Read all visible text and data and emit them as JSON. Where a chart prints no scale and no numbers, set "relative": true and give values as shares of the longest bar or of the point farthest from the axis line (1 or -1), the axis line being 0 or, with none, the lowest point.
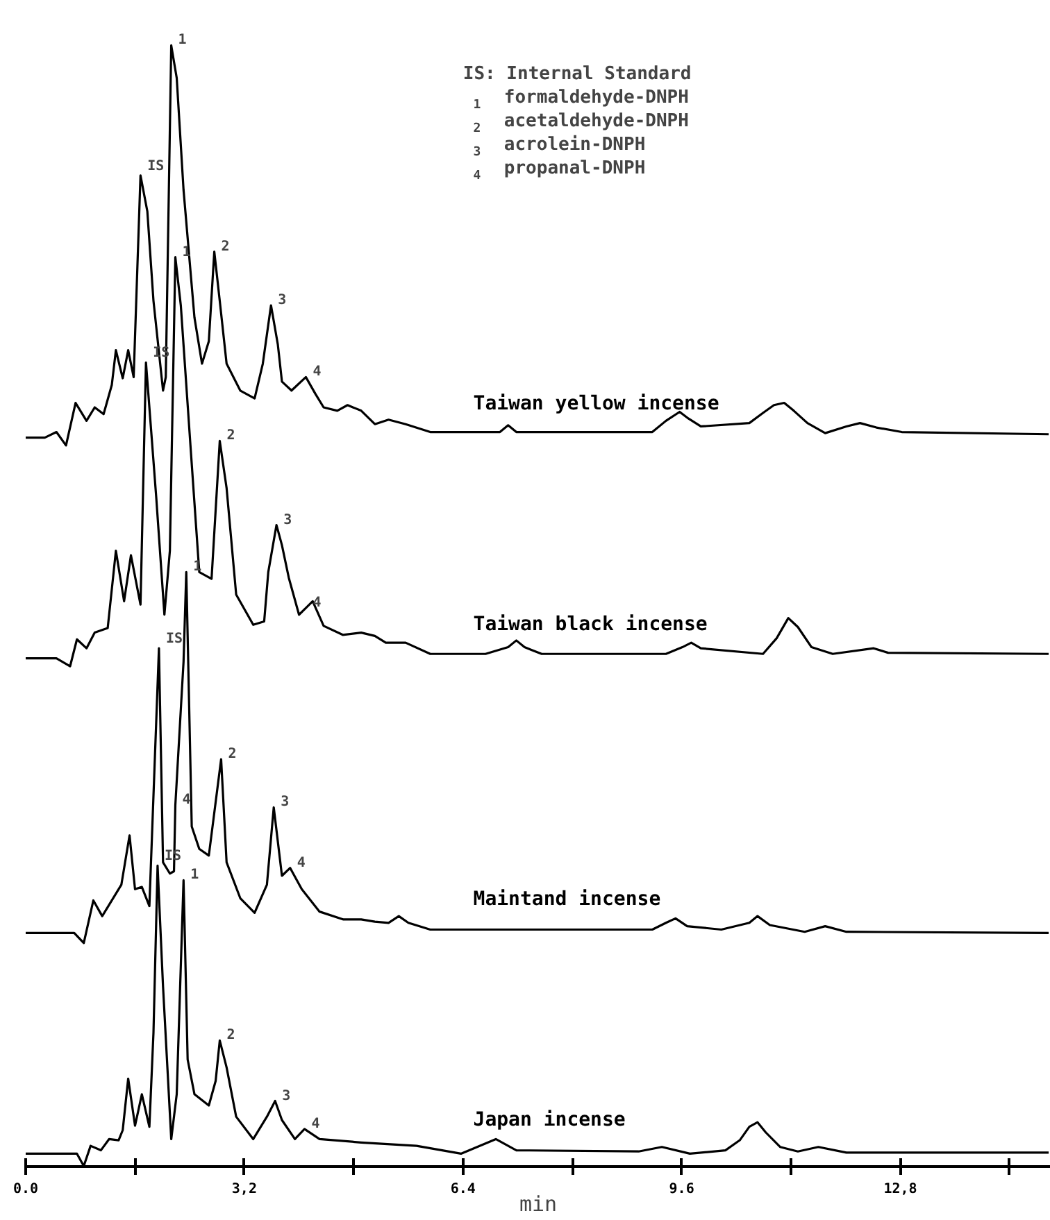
{
  "chart_data": {
    "type": "line",
    "relative": true,
    "xlabel": "min",
    "xlim": [
      0,
      15
    ],
    "xticks": [
      {
        "value": 0,
        "label": "0.0"
      },
      {
        "value": 1.6,
        "label": null
      },
      {
        "value": 3.2,
        "label": "3,2"
      },
      {
        "value": 4.8,
        "label": null
      },
      {
        "value": 6.4,
        "label": "6.4"
      },
      {
        "value": 8.0,
        "label": null
      },
      {
        "value": 9.6,
        "label": "9.6"
      },
      {
        "value": 11.2,
        "label": null
      },
      {
        "value": 12.8,
        "label": "12,8"
      },
      {
        "value": 14.4,
        "label": null
      }
    ],
    "tick_labels": "x",
    "grid": false,
    "legend": false,
    "marker": "none",
    "line_style": "solid",
    "series": [
      {
        "name": "Taiwan yellow incense",
        "color": "#000000",
        "x": [
          0,
          0.28,
          0.45,
          0.59,
          0.73,
          0.89,
          1.01,
          1.14,
          1.26,
          1.32,
          1.42,
          1.5,
          1.58,
          1.68,
          1.78,
          1.87,
          2.01,
          2.05,
          2.13,
          2.21,
          2.31,
          2.47,
          2.58,
          2.68,
          2.76,
          2.84,
          2.94,
          3.14,
          3.35,
          3.47,
          3.59,
          3.69,
          3.75,
          3.89,
          4.1,
          4.24,
          4.36,
          4.56,
          4.71,
          4.91,
          5.11,
          5.31,
          5.56,
          5.92,
          6.94,
          7.06,
          7.18,
          9.17,
          9.37,
          9.57,
          9.7,
          9.88,
          10.59,
          10.79,
          10.95,
          11.1,
          11.24,
          11.44,
          11.7,
          12.01,
          12.21,
          12.45,
          12.82,
          14.97
        ],
        "values": [
          0.65,
          0.65,
          0.655,
          0.643,
          0.681,
          0.665,
          0.677,
          0.671,
          0.697,
          0.728,
          0.703,
          0.728,
          0.704,
          0.884,
          0.852,
          0.772,
          0.692,
          0.704,
          1.0,
          0.971,
          0.871,
          0.757,
          0.716,
          0.736,
          0.816,
          0.772,
          0.716,
          0.692,
          0.685,
          0.716,
          0.768,
          0.733,
          0.7,
          0.692,
          0.704,
          0.689,
          0.677,
          0.674,
          0.679,
          0.674,
          0.662,
          0.666,
          0.662,
          0.655,
          0.655,
          0.661,
          0.655,
          0.655,
          0.665,
          0.673,
          0.667,
          0.66,
          0.663,
          0.672,
          0.679,
          0.681,
          0.674,
          0.663,
          0.654,
          0.66,
          0.663,
          0.659,
          0.655,
          0.653
        ]
      },
      {
        "name": "Taiwan black incense",
        "color": "#000000",
        "x": [
          0,
          0.45,
          0.65,
          0.75,
          0.89,
          1.01,
          1.2,
          1.32,
          1.44,
          1.54,
          1.68,
          1.76,
          1.91,
          2.03,
          2.11,
          2.19,
          2.27,
          2.41,
          2.54,
          2.72,
          2.84,
          2.94,
          3.08,
          3.33,
          3.49,
          3.55,
          3.67,
          3.75,
          3.85,
          4.0,
          4.1,
          4.2,
          4.36,
          4.64,
          4.91,
          5.11,
          5.27,
          5.56,
          5.92,
          6.73,
          7.06,
          7.18,
          7.3,
          7.55,
          9.37,
          9.61,
          9.74,
          9.88,
          10.79,
          10.99,
          11.16,
          11.3,
          11.5,
          11.81,
          12.41,
          12.62,
          14.97
        ],
        "values": [
          0.453,
          0.453,
          0.446,
          0.47,
          0.462,
          0.476,
          0.48,
          0.549,
          0.504,
          0.545,
          0.501,
          0.717,
          0.597,
          0.492,
          0.549,
          0.811,
          0.768,
          0.644,
          0.53,
          0.524,
          0.647,
          0.605,
          0.51,
          0.483,
          0.486,
          0.53,
          0.572,
          0.554,
          0.525,
          0.492,
          0.498,
          0.504,
          0.482,
          0.474,
          0.476,
          0.473,
          0.467,
          0.467,
          0.457,
          0.457,
          0.463,
          0.469,
          0.463,
          0.457,
          0.457,
          0.463,
          0.467,
          0.462,
          0.457,
          0.471,
          0.489,
          0.481,
          0.463,
          0.457,
          0.462,
          0.458,
          0.457
        ]
      },
      {
        "name": "Maintand incense",
        "color": "#000000",
        "x": [
          0,
          0.71,
          0.85,
          0.99,
          1.12,
          1.4,
          1.52,
          1.6,
          1.7,
          1.81,
          1.95,
          2.01,
          2.11,
          2.17,
          2.19,
          2.31,
          2.35,
          2.43,
          2.54,
          2.68,
          2.86,
          2.94,
          3.14,
          3.35,
          3.53,
          3.63,
          3.75,
          3.87,
          4.04,
          4.3,
          4.65,
          4.91,
          5.11,
          5.31,
          5.46,
          5.6,
          5.92,
          9.17,
          9.37,
          9.51,
          9.68,
          10.18,
          10.59,
          10.71,
          10.89,
          11.4,
          11.7,
          12.01,
          14.97
        ],
        "values": [
          0.208,
          0.208,
          0.199,
          0.237,
          0.223,
          0.251,
          0.295,
          0.247,
          0.249,
          0.232,
          0.462,
          0.271,
          0.261,
          0.263,
          0.322,
          0.45,
          0.53,
          0.303,
          0.283,
          0.277,
          0.363,
          0.271,
          0.239,
          0.226,
          0.251,
          0.32,
          0.259,
          0.266,
          0.247,
          0.227,
          0.22,
          0.22,
          0.218,
          0.217,
          0.223,
          0.217,
          0.211,
          0.211,
          0.217,
          0.221,
          0.214,
          0.211,
          0.217,
          0.223,
          0.215,
          0.209,
          0.214,
          0.209,
          0.208
        ]
      },
      {
        "name": "Japan incense",
        "color": "#000000",
        "x": [
          0,
          0.75,
          0.85,
          0.95,
          1.1,
          1.22,
          1.36,
          1.42,
          1.5,
          1.6,
          1.7,
          1.81,
          1.87,
          1.93,
          2.01,
          2.13,
          2.21,
          2.31,
          2.37,
          2.47,
          2.68,
          2.78,
          2.84,
          2.94,
          3.08,
          3.33,
          3.53,
          3.65,
          3.75,
          3.94,
          4.08,
          4.3,
          4.91,
          5.72,
          6.37,
          6.88,
          7.18,
          8.97,
          9.31,
          9.72,
          10.24,
          10.45,
          10.59,
          10.71,
          10.83,
          11.04,
          11.3,
          11.6,
          12.01,
          14.97
        ],
        "values": [
          0.011,
          0.011,
          0.0,
          0.018,
          0.014,
          0.024,
          0.023,
          0.032,
          0.078,
          0.036,
          0.064,
          0.035,
          0.119,
          0.268,
          0.16,
          0.024,
          0.064,
          0.255,
          0.095,
          0.064,
          0.054,
          0.076,
          0.112,
          0.088,
          0.044,
          0.024,
          0.044,
          0.058,
          0.041,
          0.024,
          0.033,
          0.024,
          0.021,
          0.018,
          0.011,
          0.024,
          0.014,
          0.013,
          0.017,
          0.011,
          0.014,
          0.023,
          0.035,
          0.039,
          0.03,
          0.017,
          0.013,
          0.017,
          0.012,
          0.012
        ]
      }
    ],
    "annotations": [
      "IS: Internal Standard",
      "1 formaldehyde-DNPH",
      "2 acetaldehyde-DNPH",
      "3 acrolein-DNPH",
      "4 propanal-DNPH",
      {
        "text": "IS",
        "x": 1.68,
        "y": 0.884
      },
      {
        "text": "1",
        "x": 2.13,
        "y": 1.0
      },
      {
        "text": "2",
        "x": 2.76,
        "y": 0.816
      },
      {
        "text": "3",
        "x": 3.59,
        "y": 0.768
      },
      {
        "text": "4",
        "x": 4.1,
        "y": 0.704
      },
      {
        "text": "IS",
        "x": 1.76,
        "y": 0.717
      },
      {
        "text": "1",
        "x": 2.19,
        "y": 0.811
      },
      {
        "text": "2",
        "x": 2.84,
        "y": 0.647
      },
      {
        "text": "3",
        "x": 3.67,
        "y": 0.572
      },
      {
        "text": "4",
        "x": 4.1,
        "y": 0.498
      },
      {
        "text": "IS",
        "x": 1.95,
        "y": 0.462
      },
      {
        "text": "1",
        "x": 2.35,
        "y": 0.53
      },
      {
        "text": "4",
        "x": 2.19,
        "y": 0.322
      },
      {
        "text": "2",
        "x": 2.86,
        "y": 0.363
      },
      {
        "text": "3",
        "x": 3.63,
        "y": 0.32
      },
      {
        "text": "4",
        "x": 3.87,
        "y": 0.266
      },
      {
        "text": "IS",
        "x": 1.93,
        "y": 0.268
      },
      {
        "text": "1",
        "x": 2.31,
        "y": 0.255
      },
      {
        "text": "2",
        "x": 2.84,
        "y": 0.112
      },
      {
        "text": "3",
        "x": 3.65,
        "y": 0.058
      },
      {
        "text": "4",
        "x": 4.08,
        "y": 0.033
      }
    ]
  }
}
